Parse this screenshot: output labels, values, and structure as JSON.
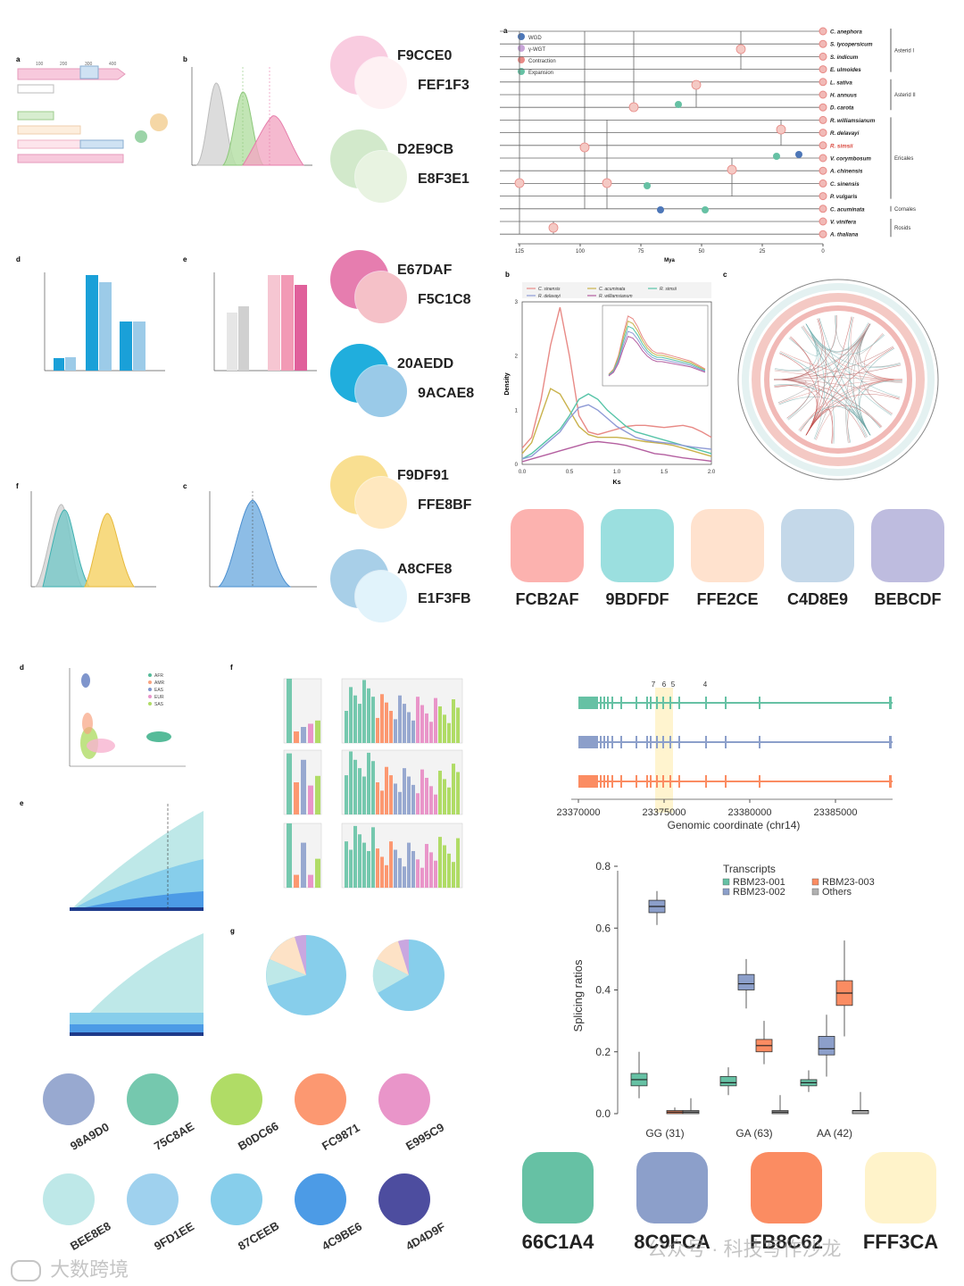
{
  "palette_top_pairs": [
    {
      "a": "F9CCE0",
      "b": "FEF1F3"
    },
    {
      "a": "D2E9CB",
      "b": "E8F3E1"
    },
    {
      "a": "E67DAF",
      "b": "F5C1C8"
    },
    {
      "a": "20AEDD",
      "b": "9ACAE8"
    },
    {
      "a": "F9DF91",
      "b": "FFE8BF"
    },
    {
      "a": "A8CFE8",
      "b": "E1F3FB"
    }
  ],
  "palette_top_right": [
    "FCB2AF",
    "9BDFDF",
    "FFE2CE",
    "C4D8E9",
    "BEBCDF"
  ],
  "palette_bottom_left_row1": [
    "98A9D0",
    "75C8AE",
    "B0DC66",
    "FC9871",
    "E995C9"
  ],
  "palette_bottom_left_row2": [
    "BEE8E8",
    "9FD1EE",
    "87CEEB",
    "4C9BE6",
    "4D4D9F"
  ],
  "palette_bottom_right": [
    "66C1A4",
    "8C9FCA",
    "FB8C62",
    "FFF3CA"
  ],
  "watermark_left": "大数跨境",
  "watermark_right": "公众号 · 科技写作沙龙",
  "phylo": {
    "panel_letter": "a",
    "legend": [
      "WGD",
      "γ-WGT",
      "Contraction",
      "Expansion"
    ],
    "taxa": [
      "C. anephora",
      "S. lycopersicum",
      "S. indicum",
      "E. ulmoides",
      "L. sativa",
      "H. annuus",
      "D. carota",
      "R. williamsianum",
      "R. delavayi",
      "R. simsii",
      "V. corymbosum",
      "A. chinensis",
      "C. sinensis",
      "P. vulgaris",
      "C. acuminata",
      "V. vinifera",
      "A. thaliana"
    ],
    "clades": [
      "Asterid I",
      "Asterid II",
      "Ericales",
      "Cornales",
      "Rosids"
    ],
    "axis_ticks": [
      "125",
      "100",
      "75",
      "50",
      "25",
      "0"
    ],
    "axis_label": "Mya"
  },
  "ks_chart": {
    "panel_letter": "b",
    "legend": [
      "C. sinensis",
      "C. acuminata",
      "R. simsii",
      "R. delavayi",
      "R. williamsianum"
    ],
    "xlabel": "Ks",
    "ylabel": "Density",
    "xticks": [
      "0.0",
      "0.5",
      "1.0",
      "1.5",
      "2.0"
    ],
    "yticks": [
      "0",
      "1",
      "2",
      "3"
    ]
  },
  "circos": {
    "panel_letter": "c"
  },
  "gene_model": {
    "exon_numbers": [
      "7",
      "6",
      "5",
      "4"
    ],
    "xticks": [
      "23370000",
      "23375000",
      "23380000",
      "23385000"
    ],
    "xlabel": "Genomic coordinate (chr14)"
  },
  "chart_data": [
    {
      "type": "box",
      "title": "",
      "legend_title": "Transcripts",
      "legend": [
        "RBM23-001",
        "RBM23-002",
        "RBM23-003",
        "Others"
      ],
      "series_colors": [
        "#66C1A4",
        "#8C9FCA",
        "#FB8C62",
        "#B0B0B0"
      ],
      "categories": [
        "GG (31)",
        "GA (63)",
        "AA (42)"
      ],
      "ylabel": "Splicing ratios",
      "ylim": [
        0,
        0.8
      ],
      "yticks": [
        "0.0",
        "0.2",
        "0.4",
        "0.6",
        "0.8"
      ],
      "series": [
        {
          "name": "RBM23-001",
          "medians": [
            0.11,
            0.1,
            0.1
          ],
          "q1": [
            0.09,
            0.09,
            0.09
          ],
          "q3": [
            0.13,
            0.12,
            0.11
          ],
          "wmin": [
            0.05,
            0.06,
            0.07
          ],
          "wmax": [
            0.2,
            0.15,
            0.14
          ]
        },
        {
          "name": "RBM23-002",
          "medians": [
            0.67,
            0.42,
            0.21
          ],
          "q1": [
            0.65,
            0.4,
            0.19
          ],
          "q3": [
            0.69,
            0.45,
            0.25
          ],
          "wmin": [
            0.61,
            0.34,
            0.12
          ],
          "wmax": [
            0.72,
            0.5,
            0.32
          ]
        },
        {
          "name": "RBM23-003",
          "medians": [
            0.005,
            0.22,
            0.39
          ],
          "q1": [
            0.0,
            0.2,
            0.35
          ],
          "q3": [
            0.01,
            0.24,
            0.43
          ],
          "wmin": [
            0.0,
            0.16,
            0.25
          ],
          "wmax": [
            0.02,
            0.3,
            0.56
          ]
        },
        {
          "name": "Others",
          "medians": [
            0.005,
            0.005,
            0.01
          ],
          "q1": [
            0.0,
            0.0,
            0.0
          ],
          "q3": [
            0.01,
            0.01,
            0.01
          ],
          "wmin": [
            0.0,
            0.0,
            0.0
          ],
          "wmax": [
            0.05,
            0.06,
            0.07
          ]
        }
      ]
    },
    {
      "type": "line",
      "title": "",
      "legend": [
        "C. sinensis",
        "C. acuminata",
        "R. simsii",
        "R. delavayi",
        "R. williamsianum"
      ],
      "series_colors": [
        "#E88A86",
        "#C9B24C",
        "#57C4A8",
        "#8F9BD6",
        "#B45FA0"
      ],
      "xlabel": "Ks",
      "ylabel": "Density",
      "xlim": [
        0,
        2
      ],
      "ylim": [
        0,
        3
      ],
      "x": [
        0.0,
        0.1,
        0.2,
        0.3,
        0.4,
        0.5,
        0.6,
        0.7,
        0.8,
        0.9,
        1.0,
        1.1,
        1.2,
        1.3,
        1.4,
        1.5,
        1.6,
        1.7,
        1.8,
        1.9,
        2.0
      ],
      "series": [
        {
          "name": "C. sinensis",
          "values": [
            0.3,
            0.5,
            1.2,
            2.2,
            2.9,
            2.0,
            0.9,
            0.6,
            0.55,
            0.6,
            0.65,
            0.7,
            0.72,
            0.72,
            0.7,
            0.68,
            0.7,
            0.72,
            0.68,
            0.6,
            0.5
          ]
        },
        {
          "name": "C. acuminata",
          "values": [
            0.2,
            0.4,
            0.9,
            1.4,
            1.3,
            1.0,
            0.7,
            0.55,
            0.5,
            0.5,
            0.5,
            0.48,
            0.45,
            0.42,
            0.4,
            0.38,
            0.35,
            0.3,
            0.25,
            0.2,
            0.15
          ]
        },
        {
          "name": "R. simsii",
          "values": [
            0.1,
            0.2,
            0.35,
            0.5,
            0.65,
            0.9,
            1.2,
            1.3,
            1.2,
            1.0,
            0.85,
            0.7,
            0.6,
            0.55,
            0.5,
            0.45,
            0.4,
            0.35,
            0.3,
            0.25,
            0.2
          ]
        },
        {
          "name": "R. delavayi",
          "values": [
            0.1,
            0.15,
            0.3,
            0.45,
            0.6,
            0.85,
            1.05,
            1.1,
            1.0,
            0.85,
            0.7,
            0.6,
            0.5,
            0.45,
            0.42,
            0.4,
            0.38,
            0.35,
            0.32,
            0.3,
            0.28
          ]
        },
        {
          "name": "R. williamsianum",
          "values": [
            0.05,
            0.1,
            0.15,
            0.2,
            0.25,
            0.3,
            0.35,
            0.4,
            0.42,
            0.4,
            0.38,
            0.35,
            0.3,
            0.25,
            0.2,
            0.18,
            0.15,
            0.12,
            0.1,
            0.08,
            0.06
          ]
        }
      ]
    }
  ]
}
